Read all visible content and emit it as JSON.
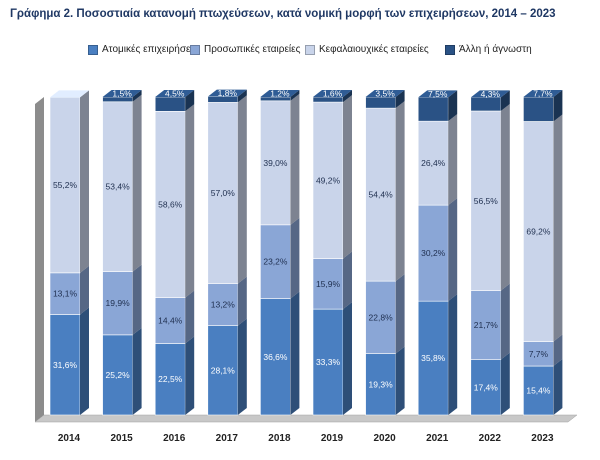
{
  "title": "Γράφημα 2. Ποσοστιαία κατανομή πτωχεύσεων, κατά νομική μορφή των επιχειρήσεων, 2014 – 2023",
  "chart_data": {
    "type": "bar",
    "stacked": true,
    "three_d": true,
    "categories": [
      "2014",
      "2015",
      "2016",
      "2017",
      "2018",
      "2019",
      "2020",
      "2021",
      "2022",
      "2023"
    ],
    "series": [
      {
        "name": "Ατομικές επιχειρήσεις",
        "color": "#4a7fc1",
        "values": [
          31.6,
          25.2,
          22.5,
          28.1,
          36.6,
          33.3,
          19.3,
          35.8,
          17.4,
          15.4
        ],
        "labels": [
          "31,6%",
          "25,2%",
          "22,5%",
          "28,1%",
          "36,6%",
          "33,3%",
          "19,3%",
          "35,8%",
          "17,4%",
          "15,4%"
        ]
      },
      {
        "name": "Προσωπικές εταιρείες",
        "color": "#8aa6d6",
        "values": [
          13.1,
          19.9,
          14.4,
          13.2,
          23.2,
          15.9,
          22.8,
          30.2,
          21.7,
          7.7
        ],
        "labels": [
          "13,1%",
          "19,9%",
          "14,4%",
          "13,2%",
          "23,2%",
          "15,9%",
          "22,8%",
          "30,2%",
          "21,7%",
          "7,7%"
        ]
      },
      {
        "name": "Κεφαλαιουχικές εταιρείες",
        "color": "#c9d4ea",
        "values": [
          55.2,
          53.4,
          58.6,
          57.0,
          39.0,
          49.2,
          54.4,
          26.4,
          56.5,
          69.2
        ],
        "labels": [
          "55,2%",
          "53,4%",
          "58,6%",
          "57,0%",
          "39,0%",
          "49,2%",
          "54,4%",
          "26,4%",
          "56,5%",
          "69,2%"
        ]
      },
      {
        "name": "Άλλη ή άγνωστη",
        "color": "#2a5285",
        "values": [
          0.0,
          1.5,
          4.5,
          1.8,
          1.2,
          1.6,
          3.5,
          7.5,
          4.3,
          7.7
        ],
        "labels": [
          "",
          "1,5%",
          "4,5%",
          "1,8%",
          "1,2%",
          "1,6%",
          "3,5%",
          "7,5%",
          "4,3%",
          "7,7%"
        ]
      }
    ],
    "ylim": [
      0,
      100
    ],
    "legend_position": "top",
    "grid": false
  }
}
